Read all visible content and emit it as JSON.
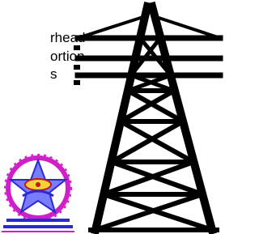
{
  "text_lines": [
    "rhead",
    "ortion",
    "s"
  ]
}
